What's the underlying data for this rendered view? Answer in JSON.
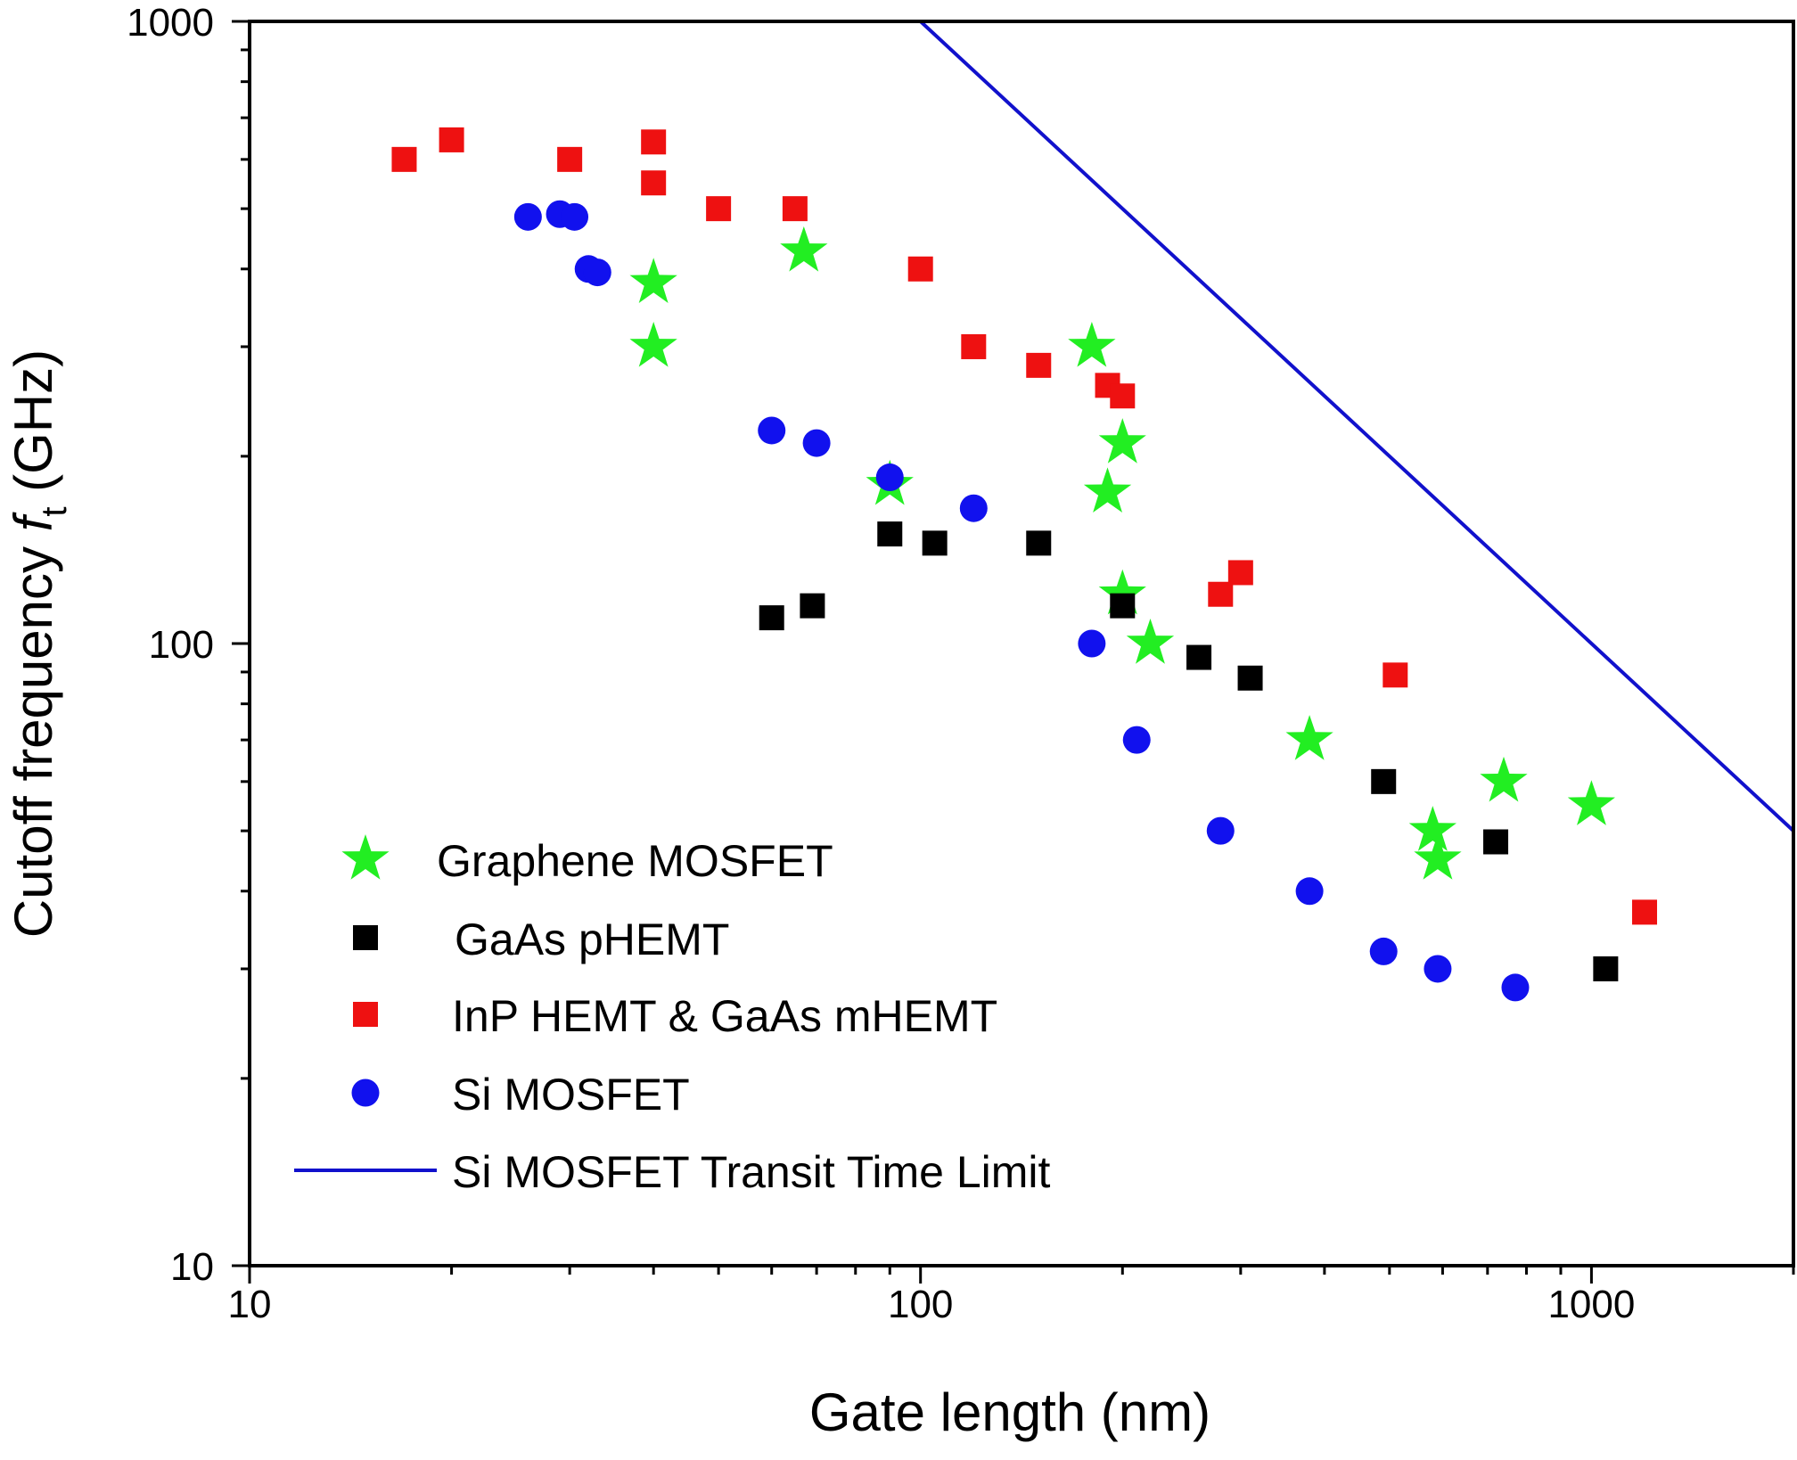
{
  "chart_data": {
    "type": "scatter",
    "xlabel": "Gate length (nm)",
    "ylabel": "Cutoff frequency",
    "ylabel_symbol": "f",
    "ylabel_subscript": "t",
    "ylabel_unit": "(GHz)",
    "x_scale": "log",
    "y_scale": "log",
    "xlim": [
      10,
      2000
    ],
    "ylim": [
      10,
      1000
    ],
    "x_ticks": [
      {
        "value": 10,
        "label": "10"
      },
      {
        "value": 100,
        "label": "100"
      },
      {
        "value": 1000,
        "label": "1000"
      }
    ],
    "y_ticks": [
      {
        "value": 10,
        "label": "10"
      },
      {
        "value": 100,
        "label": "100"
      },
      {
        "value": 1000,
        "label": "1000"
      }
    ],
    "grid": false,
    "legend_position": "bottom-left",
    "series": [
      {
        "name": "Graphene MOSFET",
        "marker": "star",
        "color": "#22ee22",
        "points": [
          [
            40,
            380
          ],
          [
            40,
            300
          ],
          [
            67,
            427
          ],
          [
            90,
            180
          ],
          [
            180,
            300
          ],
          [
            190,
            175
          ],
          [
            200,
            210
          ],
          [
            200,
            120
          ],
          [
            220,
            100
          ],
          [
            380,
            70
          ],
          [
            580,
            50
          ],
          [
            590,
            45
          ],
          [
            740,
            60
          ],
          [
            1000,
            55
          ]
        ]
      },
      {
        "name": "GaAs pHEMT",
        "marker": "square",
        "color": "#000000",
        "points": [
          [
            60,
            110
          ],
          [
            69,
            115
          ],
          [
            90,
            150
          ],
          [
            105,
            145
          ],
          [
            150,
            145
          ],
          [
            200,
            115
          ],
          [
            260,
            95
          ],
          [
            310,
            88
          ],
          [
            490,
            60
          ],
          [
            720,
            48
          ],
          [
            1050,
            30
          ]
        ]
      },
      {
        "name": "InP HEMT & GaAs mHEMT",
        "marker": "square",
        "color": "#ee1111",
        "points": [
          [
            17,
            600
          ],
          [
            20,
            645
          ],
          [
            30,
            600
          ],
          [
            40,
            640
          ],
          [
            40,
            550
          ],
          [
            50,
            500
          ],
          [
            65,
            500
          ],
          [
            100,
            400
          ],
          [
            120,
            300
          ],
          [
            150,
            280
          ],
          [
            190,
            260
          ],
          [
            200,
            250
          ],
          [
            280,
            120
          ],
          [
            300,
            130
          ],
          [
            510,
            89
          ],
          [
            1200,
            37
          ]
        ]
      },
      {
        "name": "Si MOSFET",
        "marker": "circle",
        "color": "#1111ee",
        "points": [
          [
            26,
            485
          ],
          [
            29,
            490
          ],
          [
            30.5,
            485
          ],
          [
            32,
            400
          ],
          [
            33,
            395
          ],
          [
            60,
            220
          ],
          [
            70,
            210
          ],
          [
            90,
            185
          ],
          [
            120,
            165
          ],
          [
            180,
            100
          ],
          [
            210,
            70
          ],
          [
            280,
            50
          ],
          [
            380,
            40
          ],
          [
            490,
            32
          ],
          [
            590,
            30
          ],
          [
            770,
            28
          ]
        ]
      },
      {
        "name": "Si MOSFET Transit Time Limit",
        "marker": "line",
        "color": "#1111cc",
        "points": [
          [
            100,
            1000
          ],
          [
            2000,
            50
          ]
        ]
      }
    ]
  }
}
